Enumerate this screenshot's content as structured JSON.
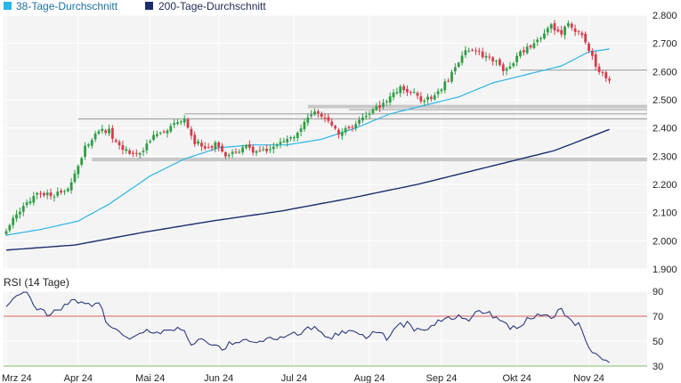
{
  "colors": {
    "ma38": "#29b6e8",
    "ma200": "#1a2e6e",
    "candle_up": "#2e9e44",
    "candle_down": "#d93a4a",
    "rsi_line": "#2a3a80",
    "rsi_upper": "#e06060",
    "rsi_lower": "#7fbf6a",
    "plot_bg": "#f4f4f4",
    "grid": "#ffffff",
    "support_band": "#c8c8c8",
    "level_line": "#a8a8a8"
  },
  "legend": {
    "ma38_label": "38-Tage-Durchschnitt",
    "ma200_label": "200-Tage-Durchschnitt"
  },
  "rsi_panel": {
    "title": "RSI (14 Tage)"
  },
  "chart_data": [
    {
      "type": "candlestick",
      "ylim": [
        1900,
        2800
      ],
      "y_ticks": [
        1900,
        2000,
        2100,
        2200,
        2300,
        2400,
        2500,
        2600,
        2700,
        2800
      ],
      "y_tick_labels": [
        "1.900",
        "2.000",
        "2.100",
        "2.200",
        "2.300",
        "2.400",
        "2.500",
        "2.600",
        "2.700",
        "2.800"
      ],
      "x_tick_labels": [
        "Mrz 24",
        "Apr 24",
        "Mai 24",
        "Jun 24",
        "Jul 24",
        "Aug 24",
        "Sep 24",
        "Okt 24",
        "Nov 24"
      ],
      "x_tick_index": [
        0,
        21,
        42,
        62,
        84,
        106,
        127,
        149,
        170
      ],
      "n_days": 177,
      "grid": true,
      "legend_position": "top-left",
      "close_anchors": [
        [
          0,
          2040
        ],
        [
          5,
          2120
        ],
        [
          9,
          2170
        ],
        [
          13,
          2160
        ],
        [
          17,
          2180
        ],
        [
          19,
          2200
        ],
        [
          21,
          2260
        ],
        [
          23,
          2330
        ],
        [
          25,
          2360
        ],
        [
          27,
          2390
        ],
        [
          30,
          2390
        ],
        [
          33,
          2330
        ],
        [
          36,
          2310
        ],
        [
          39,
          2310
        ],
        [
          42,
          2360
        ],
        [
          45,
          2380
        ],
        [
          49,
          2410
        ],
        [
          52,
          2440
        ],
        [
          55,
          2350
        ],
        [
          58,
          2330
        ],
        [
          61,
          2340
        ],
        [
          64,
          2300
        ],
        [
          67,
          2310
        ],
        [
          70,
          2330
        ],
        [
          73,
          2310
        ],
        [
          76,
          2320
        ],
        [
          79,
          2340
        ],
        [
          82,
          2360
        ],
        [
          85,
          2380
        ],
        [
          88,
          2430
        ],
        [
          91,
          2460
        ],
        [
          94,
          2420
        ],
        [
          97,
          2380
        ],
        [
          100,
          2400
        ],
        [
          103,
          2420
        ],
        [
          106,
          2450
        ],
        [
          109,
          2480
        ],
        [
          112,
          2510
        ],
        [
          115,
          2540
        ],
        [
          118,
          2530
        ],
        [
          121,
          2500
        ],
        [
          124,
          2510
        ],
        [
          127,
          2540
        ],
        [
          130,
          2590
        ],
        [
          133,
          2660
        ],
        [
          136,
          2680
        ],
        [
          139,
          2660
        ],
        [
          142,
          2640
        ],
        [
          145,
          2610
        ],
        [
          148,
          2630
        ],
        [
          150,
          2670
        ],
        [
          153,
          2690
        ],
        [
          156,
          2720
        ],
        [
          159,
          2760
        ],
        [
          162,
          2740
        ],
        [
          164,
          2780
        ],
        [
          166,
          2740
        ],
        [
          168,
          2730
        ],
        [
          170,
          2680
        ],
        [
          172,
          2620
        ],
        [
          174,
          2590
        ],
        [
          176,
          2560
        ]
      ],
      "ma38_anchors": [
        [
          0,
          2020
        ],
        [
          10,
          2040
        ],
        [
          21,
          2070
        ],
        [
          30,
          2130
        ],
        [
          42,
          2230
        ],
        [
          52,
          2290
        ],
        [
          62,
          2330
        ],
        [
          72,
          2340
        ],
        [
          82,
          2340
        ],
        [
          92,
          2360
        ],
        [
          102,
          2400
        ],
        [
          112,
          2450
        ],
        [
          122,
          2480
        ],
        [
          132,
          2510
        ],
        [
          142,
          2560
        ],
        [
          152,
          2590
        ],
        [
          162,
          2620
        ],
        [
          170,
          2670
        ],
        [
          176,
          2680
        ]
      ],
      "ma200_anchors": [
        [
          0,
          1967
        ],
        [
          20,
          1985
        ],
        [
          40,
          2030
        ],
        [
          60,
          2070
        ],
        [
          80,
          2105
        ],
        [
          100,
          2150
        ],
        [
          120,
          2200
        ],
        [
          140,
          2260
        ],
        [
          160,
          2320
        ],
        [
          176,
          2395
        ]
      ],
      "support_bands": [
        {
          "from": 2282,
          "to": 2295,
          "start": 25,
          "end": 177
        },
        {
          "from": 2470,
          "to": 2482,
          "start": 88,
          "end": 177
        }
      ],
      "levels": [
        {
          "value": 2432,
          "start": 21,
          "end": 177
        },
        {
          "value": 2450,
          "start": 52,
          "end": 177
        },
        {
          "value": 2465,
          "start": 100,
          "end": 177
        },
        {
          "value": 2605,
          "start": 150,
          "end": 177
        }
      ]
    },
    {
      "type": "line",
      "title": "RSI (14 Tage)",
      "ylim": [
        30,
        90
      ],
      "y_ticks": [
        30,
        50,
        70,
        90
      ],
      "y_tick_labels": [
        "30",
        "50",
        "70",
        "90"
      ],
      "reference_lines": [
        70,
        30
      ],
      "anchors": [
        [
          0,
          78
        ],
        [
          3,
          85
        ],
        [
          6,
          88
        ],
        [
          9,
          76
        ],
        [
          12,
          72
        ],
        [
          15,
          75
        ],
        [
          18,
          80
        ],
        [
          21,
          83
        ],
        [
          24,
          79
        ],
        [
          27,
          80
        ],
        [
          30,
          62
        ],
        [
          33,
          58
        ],
        [
          36,
          54
        ],
        [
          39,
          56
        ],
        [
          42,
          58
        ],
        [
          45,
          55
        ],
        [
          48,
          61
        ],
        [
          51,
          60
        ],
        [
          54,
          48
        ],
        [
          57,
          51
        ],
        [
          60,
          49
        ],
        [
          63,
          45
        ],
        [
          66,
          48
        ],
        [
          69,
          50
        ],
        [
          72,
          49
        ],
        [
          75,
          51
        ],
        [
          78,
          52
        ],
        [
          81,
          53
        ],
        [
          84,
          56
        ],
        [
          87,
          58
        ],
        [
          90,
          63
        ],
        [
          93,
          52
        ],
        [
          96,
          54
        ],
        [
          99,
          57
        ],
        [
          102,
          59
        ],
        [
          105,
          52
        ],
        [
          108,
          57
        ],
        [
          111,
          53
        ],
        [
          114,
          63
        ],
        [
          117,
          64
        ],
        [
          120,
          58
        ],
        [
          123,
          61
        ],
        [
          126,
          66
        ],
        [
          129,
          70
        ],
        [
          132,
          69
        ],
        [
          135,
          68
        ],
        [
          138,
          75
        ],
        [
          141,
          72
        ],
        [
          144,
          68
        ],
        [
          147,
          59
        ],
        [
          150,
          64
        ],
        [
          153,
          68
        ],
        [
          156,
          72
        ],
        [
          159,
          70
        ],
        [
          162,
          74
        ],
        [
          164,
          68
        ],
        [
          166,
          65
        ],
        [
          168,
          60
        ],
        [
          170,
          45
        ],
        [
          172,
          40
        ],
        [
          174,
          37
        ],
        [
          176,
          33
        ]
      ]
    }
  ]
}
